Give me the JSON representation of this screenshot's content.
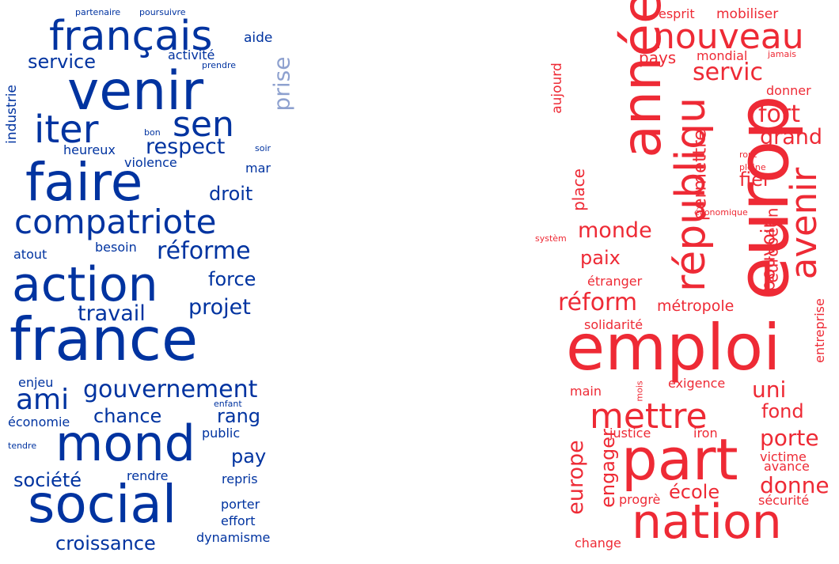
{
  "colors": {
    "left_primary": "#0033a0",
    "left_faded": "#8ea1cf",
    "right_primary": "#ee2a35",
    "right_faded": "#f59aa0"
  },
  "left_cloud": {
    "words": [
      "partenaire",
      "poursuivre",
      "français",
      "aide",
      "activité",
      "prendre",
      "service",
      "venir",
      "prise",
      "industrie",
      "iter",
      "sen",
      "bon",
      "respect",
      "soir",
      "heureux",
      "violence",
      "mar",
      "faire",
      "droit",
      "compatriote",
      "atout",
      "besoin",
      "réforme",
      "action",
      "force",
      "travail",
      "projet",
      "france",
      "enjeu",
      "ami",
      "gouvernement",
      "chance",
      "enfant",
      "rang",
      "économie",
      "public",
      "tendre",
      "mond",
      "pay",
      "société",
      "rendre",
      "repris",
      "social",
      "porter",
      "effort",
      "croissance",
      "dynamisme"
    ]
  },
  "right_cloud": {
    "words": [
      "esprit",
      "mobiliser",
      "nouveau",
      "année",
      "aujourd",
      "pays",
      "mondial",
      "jamais",
      "servic",
      "donner",
      "fort",
      "grand",
      "républiqu",
      "rout",
      "pleine",
      "place",
      "permettre",
      "fier",
      "avenir",
      "europ",
      "économique",
      "systèm",
      "monde",
      "paix",
      "européen",
      "pouvoir",
      "étranger",
      "réform",
      "métropole",
      "entreprise",
      "solidarité",
      "emploi",
      "main",
      "mois",
      "exigence",
      "uni",
      "mettre",
      "fond",
      "europe",
      "engager",
      "justice",
      "iron",
      "porte",
      "victime",
      "part",
      "avance",
      "donne",
      "école",
      "progrè",
      "sécurité",
      "nation",
      "change"
    ]
  }
}
